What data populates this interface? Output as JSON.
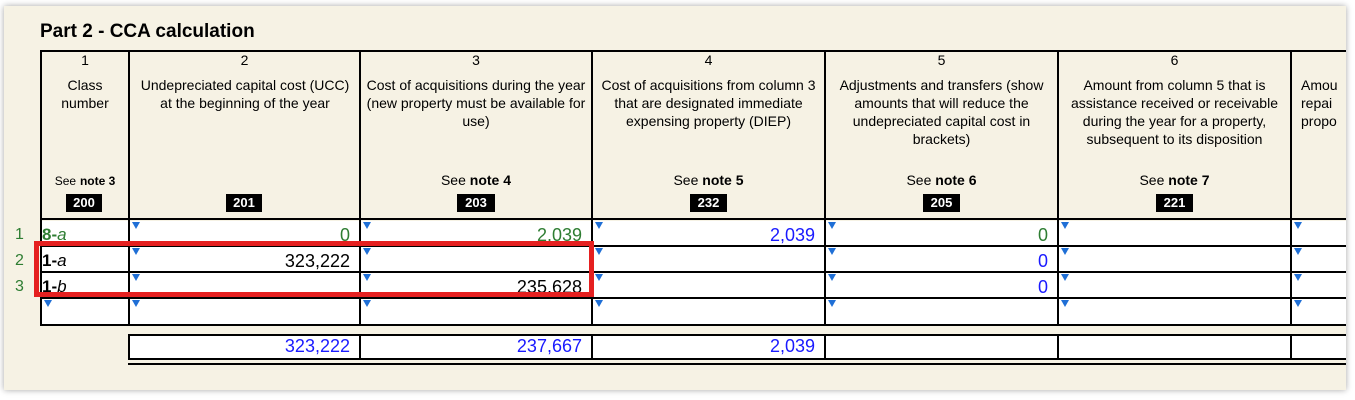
{
  "section_title": "Part 2 - CCA calculation",
  "columns": [
    {
      "num": "1",
      "header": "Class number",
      "note_prefix": "See",
      "note_ref": "note 3",
      "code": "200"
    },
    {
      "num": "2",
      "header": "Undepreciated capital cost (UCC) at the beginning of the year",
      "note_prefix": "",
      "note_ref": "",
      "code": "201"
    },
    {
      "num": "3",
      "header": "Cost of acquisitions during the year (new property must be available for use)",
      "note_prefix": "See",
      "note_ref": "note 4",
      "code": "203"
    },
    {
      "num": "4",
      "header": "Cost of acquisitions from column 3 that are designated immediate expensing property (DIEP)",
      "note_prefix": "See",
      "note_ref": "note 5",
      "code": "232"
    },
    {
      "num": "5",
      "header": "Adjustments and transfers (show amounts that will reduce the undepreciated capital cost in brackets)",
      "note_prefix": "See",
      "note_ref": "note 6",
      "code": "205"
    },
    {
      "num": "6",
      "header": "Amount from column 5 that is assistance received or receivable during the year for a property, subsequent to its disposition",
      "note_prefix": "See",
      "note_ref": "note 7",
      "code": "221"
    },
    {
      "num": "",
      "header": "Amou repai propo",
      "note_prefix": "",
      "note_ref": "",
      "code": ""
    }
  ],
  "rows": [
    {
      "row_num": "1",
      "class_main": "8-",
      "class_suffix": "a",
      "ucc": "0",
      "acquisitions": "2,039",
      "diep": "2,039",
      "adjustments": "0"
    },
    {
      "row_num": "2",
      "class_main": "1-",
      "class_suffix": "a",
      "ucc": "323,222",
      "acquisitions": "",
      "diep": "",
      "adjustments": "0"
    },
    {
      "row_num": "3",
      "class_main": "1-",
      "class_suffix": "b",
      "ucc": "",
      "acquisitions": "235,628",
      "diep": "",
      "adjustments": "0"
    }
  ],
  "totals": {
    "ucc": "323,222",
    "acquisitions": "237,667",
    "diep": "2,039"
  },
  "colors": {
    "panel_bg": "#f6f2e4",
    "value_blue": "#1a1aff",
    "row_green": "#2e7d32",
    "highlight_red": "#e52020",
    "arrow_blue": "#1f6fd6"
  }
}
